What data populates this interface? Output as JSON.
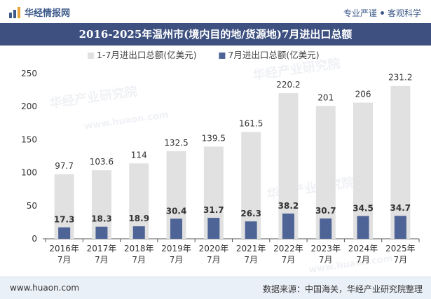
{
  "header": {
    "brand": "华经情报网",
    "tagline_left": "专业严谨",
    "tagline_right": "客观科学"
  },
  "watermark": {
    "text": "华经产业研究院",
    "url": "www.huaon.com"
  },
  "chart_data": {
    "type": "bar",
    "title": "2016-2025年温州市(境内目的地/货源地)7月进出口总额",
    "categories": [
      "2016年\n7月",
      "2017年\n7月",
      "2018年\n7月",
      "2019年\n7月",
      "2020年\n7月",
      "2021年\n7月",
      "2022年\n7月",
      "2023年\n7月",
      "2024年\n7月",
      "2025年\n7月"
    ],
    "series": [
      {
        "name": "1-7月进出口总额(亿美元)",
        "values": [
          97.7,
          103.6,
          114,
          132.5,
          139.5,
          161.5,
          220.2,
          201,
          206,
          231.2
        ],
        "color": "#e1e1e1"
      },
      {
        "name": "7月进出口总额(亿美元)",
        "values": [
          17.3,
          18.3,
          18.9,
          30.4,
          31.7,
          26.3,
          38.2,
          30.7,
          34.5,
          34.7
        ],
        "color": "#4f6496"
      }
    ],
    "ylim": [
      0,
      250
    ],
    "yticks": [
      0,
      50,
      100,
      150,
      200,
      250
    ],
    "grid": false,
    "legend": "top"
  },
  "footer": {
    "left": "www.huaon.com",
    "right": "数据来源：中国海关，华经产业研究院整理"
  }
}
